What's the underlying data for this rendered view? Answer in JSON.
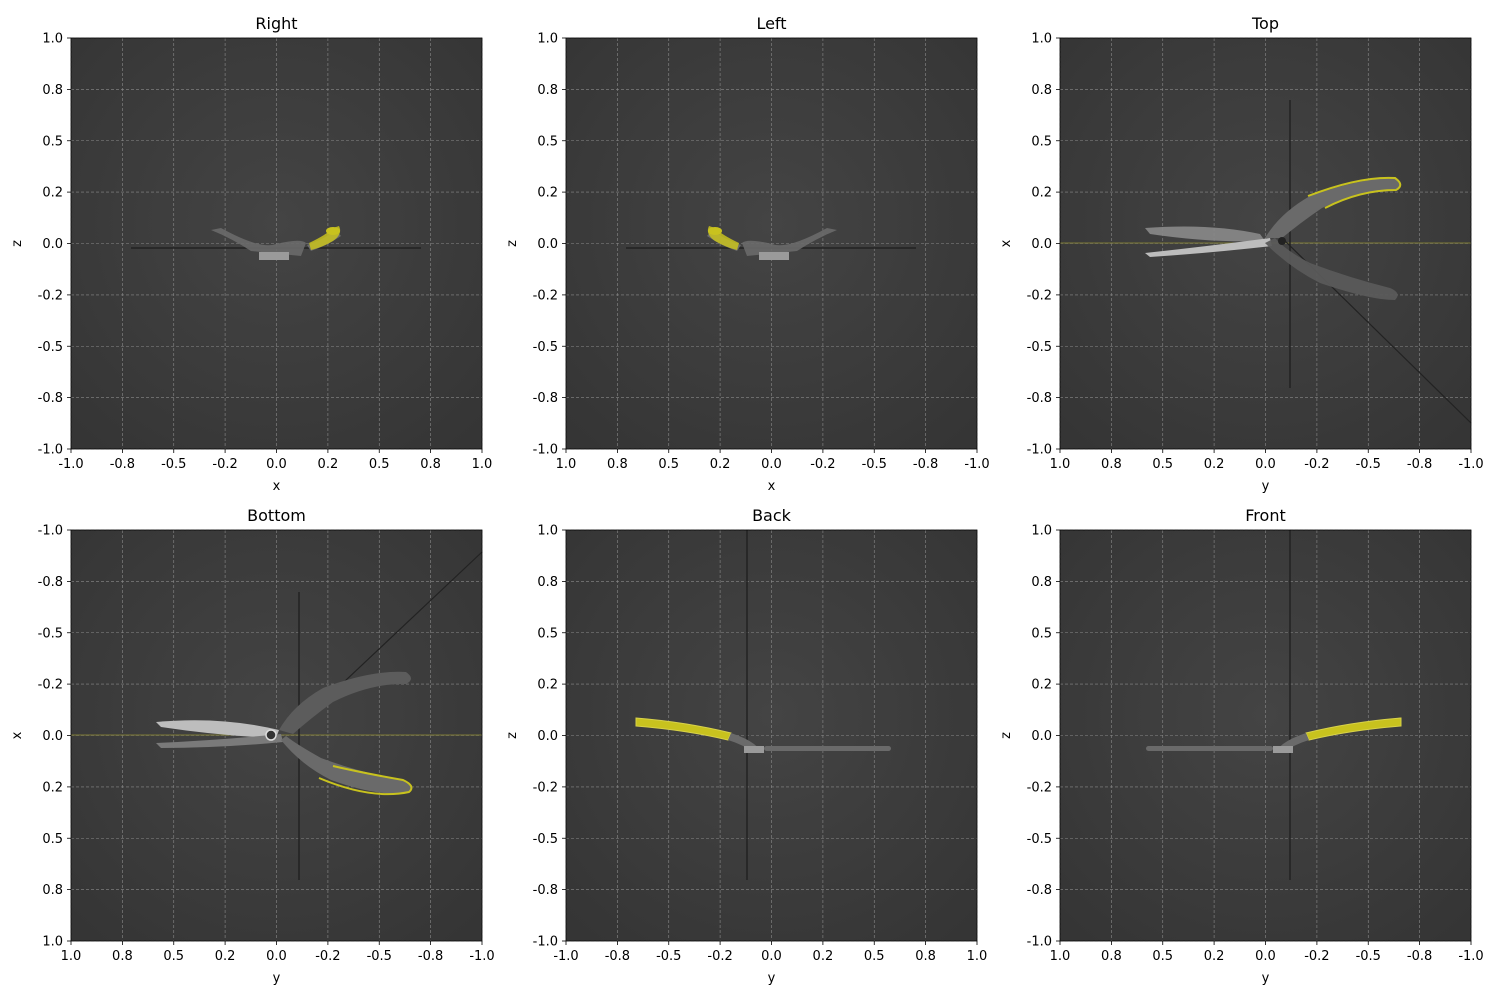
{
  "figure": {
    "panels": [
      {
        "title": "Right",
        "xlabel": "x",
        "ylabel": "z",
        "xticks": [
          "-1.0",
          "-0.8",
          "-0.5",
          "-0.2",
          "0.0",
          "0.2",
          "0.5",
          "0.8",
          "1.0"
        ],
        "yticks": [
          "1.0",
          "0.8",
          "0.5",
          "0.2",
          "0.0",
          "-0.2",
          "-0.5",
          "-0.8",
          "-1.0"
        ],
        "view": "right"
      },
      {
        "title": "Left",
        "xlabel": "x",
        "ylabel": "z",
        "xticks": [
          "1.0",
          "0.8",
          "0.5",
          "0.2",
          "0.0",
          "-0.2",
          "-0.5",
          "-0.8",
          "-1.0"
        ],
        "yticks": [
          "1.0",
          "0.8",
          "0.5",
          "0.2",
          "0.0",
          "-0.2",
          "-0.5",
          "-0.8",
          "-1.0"
        ],
        "view": "left"
      },
      {
        "title": "Top",
        "xlabel": "y",
        "ylabel": "x",
        "xticks": [
          "1.0",
          "0.8",
          "0.5",
          "0.2",
          "0.0",
          "-0.2",
          "-0.5",
          "-0.8",
          "-1.0"
        ],
        "yticks": [
          "1.0",
          "0.8",
          "0.5",
          "0.2",
          "0.0",
          "-0.2",
          "-0.5",
          "-0.8",
          "-1.0"
        ],
        "view": "top"
      },
      {
        "title": "Bottom",
        "xlabel": "y",
        "ylabel": "x",
        "xticks": [
          "1.0",
          "0.8",
          "0.5",
          "0.2",
          "0.0",
          "-0.2",
          "-0.5",
          "-0.8",
          "-1.0"
        ],
        "yticks": [
          "-1.0",
          "-0.8",
          "-0.5",
          "-0.2",
          "0.0",
          "0.2",
          "0.5",
          "0.8",
          "1.0"
        ],
        "view": "bottom"
      },
      {
        "title": "Back",
        "xlabel": "y",
        "ylabel": "z",
        "xticks": [
          "-1.0",
          "-0.8",
          "-0.5",
          "-0.2",
          "0.0",
          "0.2",
          "0.5",
          "0.8",
          "1.0"
        ],
        "yticks": [
          "1.0",
          "0.8",
          "0.5",
          "0.2",
          "0.0",
          "-0.2",
          "-0.5",
          "-0.8",
          "-1.0"
        ],
        "view": "back"
      },
      {
        "title": "Front",
        "xlabel": "y",
        "ylabel": "z",
        "xticks": [
          "1.0",
          "0.8",
          "0.5",
          "0.2",
          "0.0",
          "-0.2",
          "-0.5",
          "-0.8",
          "-1.0"
        ],
        "yticks": [
          "1.0",
          "0.8",
          "0.5",
          "0.2",
          "0.0",
          "-0.2",
          "-0.5",
          "-0.8",
          "-1.0"
        ],
        "view": "front"
      }
    ],
    "colors": {
      "viewport_bg": "#3a3a3a",
      "grid": "#8a8a8a",
      "highlight": "#c8c21e",
      "blade": "#bdbdbd",
      "handle": "#6a6a6a"
    }
  }
}
